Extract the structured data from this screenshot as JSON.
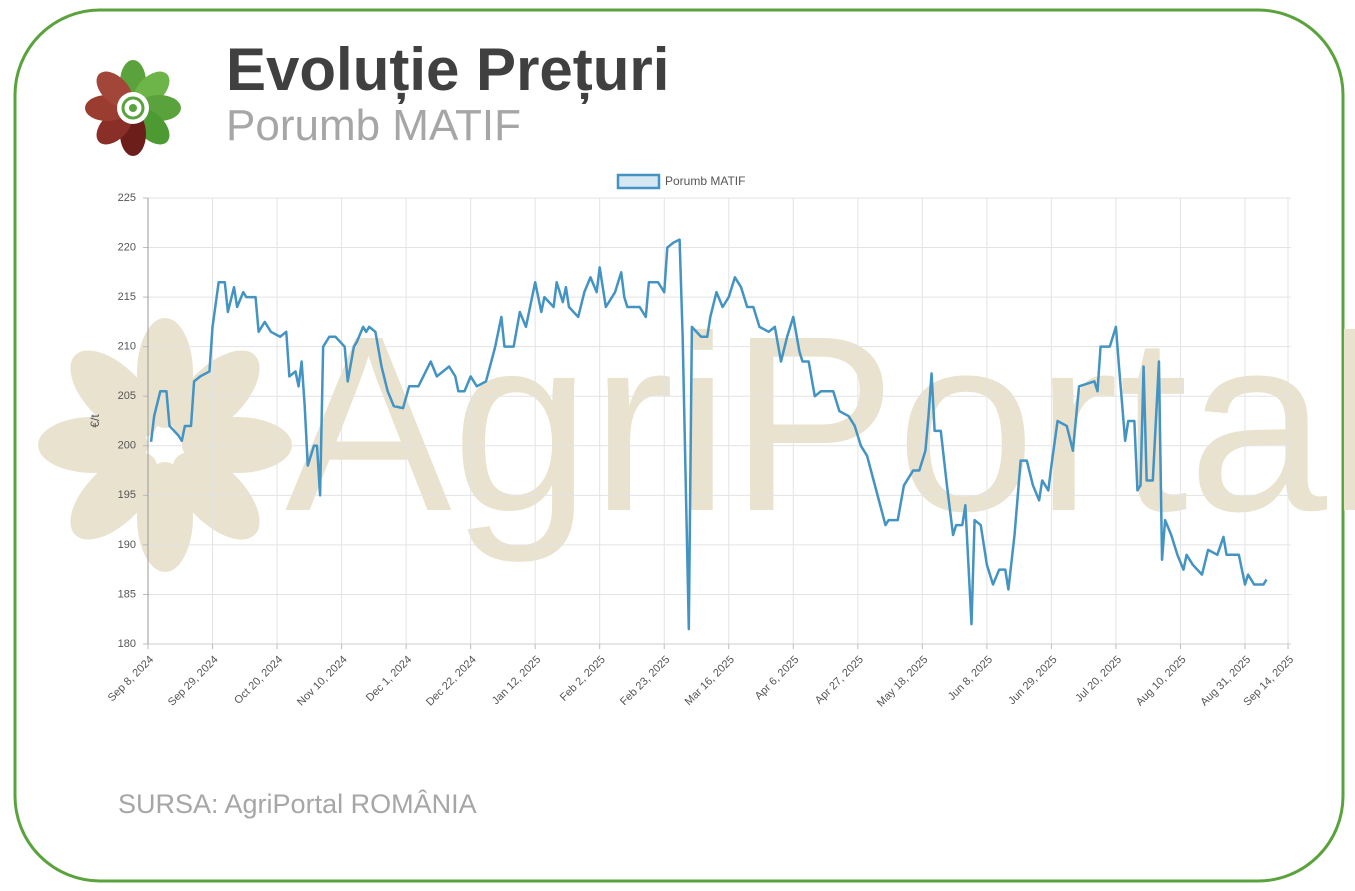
{
  "header": {
    "title": "Evoluție Prețuri",
    "subtitle": "Porumb MATIF"
  },
  "watermark": "AgriPortal",
  "source": "SURSA: AgriPortal ROMÂNIA",
  "chart_data": {
    "type": "line",
    "ylabel": "€/t",
    "grid": true,
    "x": [
      "2024-09-09",
      "2024-09-10",
      "2024-09-12",
      "2024-09-14",
      "2024-09-15",
      "2024-09-18",
      "2024-09-19",
      "2024-09-20",
      "2024-09-22",
      "2024-09-23",
      "2024-09-25",
      "2024-09-28",
      "2024-09-29",
      "2024-10-01",
      "2024-10-03",
      "2024-10-04",
      "2024-10-06",
      "2024-10-07",
      "2024-10-09",
      "2024-10-10",
      "2024-10-13",
      "2024-10-14",
      "2024-10-16",
      "2024-10-18",
      "2024-10-21",
      "2024-10-23",
      "2024-10-24",
      "2024-10-26",
      "2024-10-27",
      "2024-10-28",
      "2024-10-29",
      "2024-10-30",
      "2024-11-01",
      "2024-11-02",
      "2024-11-03",
      "2024-11-04",
      "2024-11-06",
      "2024-11-08",
      "2024-11-11",
      "2024-11-12",
      "2024-11-14",
      "2024-11-15",
      "2024-11-17",
      "2024-11-18",
      "2024-11-19",
      "2024-11-21",
      "2024-11-23",
      "2024-11-25",
      "2024-11-27",
      "2024-11-30",
      "2024-12-02",
      "2024-12-05",
      "2024-12-09",
      "2024-12-11",
      "2024-12-15",
      "2024-12-17",
      "2024-12-18",
      "2024-12-20",
      "2024-12-22",
      "2024-12-24",
      "2024-12-27",
      "2024-12-30",
      "2025-01-01",
      "2025-01-02",
      "2025-01-05",
      "2025-01-07",
      "2025-01-09",
      "2025-01-12",
      "2025-01-14",
      "2025-01-15",
      "2025-01-18",
      "2025-01-19",
      "2025-01-21",
      "2025-01-22",
      "2025-01-23",
      "2025-01-26",
      "2025-01-28",
      "2025-01-30",
      "2025-02-01",
      "2025-02-02",
      "2025-02-04",
      "2025-02-07",
      "2025-02-09",
      "2025-02-10",
      "2025-02-11",
      "2025-02-15",
      "2025-02-17",
      "2025-02-18",
      "2025-02-21",
      "2025-02-23",
      "2025-02-24",
      "2025-02-26",
      "2025-02-28",
      "2025-03-01",
      "2025-03-03",
      "2025-03-04",
      "2025-03-07",
      "2025-03-09",
      "2025-03-10",
      "2025-03-12",
      "2025-03-14",
      "2025-03-16",
      "2025-03-18",
      "2025-03-20",
      "2025-03-22",
      "2025-03-24",
      "2025-03-26",
      "2025-03-29",
      "2025-03-31",
      "2025-04-02",
      "2025-04-04",
      "2025-04-06",
      "2025-04-08",
      "2025-04-09",
      "2025-04-11",
      "2025-04-13",
      "2025-04-15",
      "2025-04-19",
      "2025-04-21",
      "2025-04-24",
      "2025-04-26",
      "2025-04-28",
      "2025-04-30",
      "2025-05-03",
      "2025-05-06",
      "2025-05-07",
      "2025-05-10",
      "2025-05-12",
      "2025-05-15",
      "2025-05-17",
      "2025-05-19",
      "2025-05-20",
      "2025-05-21",
      "2025-05-22",
      "2025-05-24",
      "2025-05-26",
      "2025-05-28",
      "2025-05-29",
      "2025-05-31",
      "2025-06-01",
      "2025-06-03",
      "2025-06-04",
      "2025-06-06",
      "2025-06-08",
      "2025-06-10",
      "2025-06-12",
      "2025-06-14",
      "2025-06-15",
      "2025-06-17",
      "2025-06-19",
      "2025-06-21",
      "2025-06-23",
      "2025-06-25",
      "2025-06-26",
      "2025-06-28",
      "2025-06-29",
      "2025-07-01",
      "2025-07-04",
      "2025-07-06",
      "2025-07-08",
      "2025-07-13",
      "2025-07-14",
      "2025-07-15",
      "2025-07-18",
      "2025-07-20",
      "2025-07-21",
      "2025-07-23",
      "2025-07-24",
      "2025-07-26",
      "2025-07-27",
      "2025-07-28",
      "2025-07-29",
      "2025-07-30",
      "2025-08-01",
      "2025-08-03",
      "2025-08-04",
      "2025-08-05",
      "2025-08-07",
      "2025-08-09",
      "2025-08-11",
      "2025-08-12",
      "2025-08-14",
      "2025-08-17",
      "2025-08-19",
      "2025-08-22",
      "2025-08-24",
      "2025-08-25",
      "2025-08-29",
      "2025-08-31",
      "2025-09-01",
      "2025-09-03",
      "2025-09-06",
      "2025-09-07"
    ],
    "series": [
      {
        "name": "Porumb MATIF",
        "color": "#4393c3",
        "values": [
          200.4,
          203,
          205.5,
          205.5,
          202,
          201,
          200.5,
          202,
          202,
          206.5,
          207,
          207.5,
          212,
          216.5,
          216.5,
          213.5,
          216,
          214,
          215.5,
          215,
          215,
          211.5,
          212.5,
          211.5,
          211,
          211.5,
          207,
          207.5,
          206,
          208.5,
          204,
          198,
          200,
          200,
          195,
          210,
          211,
          211,
          210,
          206.5,
          210,
          210.5,
          212,
          211.5,
          212,
          211.5,
          208,
          205.5,
          204,
          203.8,
          206,
          206,
          208.5,
          207,
          208,
          207,
          205.5,
          205.5,
          207,
          206,
          206.5,
          210,
          213,
          210,
          210,
          213.5,
          212,
          216.5,
          213.5,
          215,
          214,
          216.5,
          214.5,
          216,
          214,
          213,
          215.5,
          217,
          215.5,
          218,
          214,
          215.5,
          217.5,
          215,
          214,
          214,
          213,
          216.5,
          216.5,
          215.5,
          220,
          220.5,
          220.8,
          211,
          181.5,
          212,
          211,
          211,
          213,
          215.5,
          214,
          215,
          217,
          216,
          214,
          214,
          212,
          211.5,
          212,
          208.5,
          211,
          213,
          209.5,
          208.5,
          208.5,
          205,
          205.5,
          205.5,
          203.5,
          203,
          202,
          200,
          199,
          195.5,
          192,
          192.5,
          192.5,
          196,
          197.5,
          197.5,
          199.5,
          203,
          207.3,
          201.5,
          201.5,
          196,
          191,
          192,
          192,
          194,
          182,
          192.5,
          192,
          188,
          186,
          187.5,
          187.5,
          185.5,
          191,
          198.5,
          198.5,
          196,
          194.5,
          196.5,
          195.5,
          198,
          202.5,
          202,
          199.5,
          206,
          206.5,
          205.5,
          210,
          210,
          212,
          208,
          200.5,
          202.5,
          202.5,
          195.5,
          196,
          208,
          196.5,
          196.5,
          208.5,
          188.5,
          192.5,
          191,
          189,
          187.5,
          189,
          188,
          187,
          189.5,
          189,
          190.8,
          189,
          189,
          186,
          187,
          186,
          186,
          186.5
        ]
      }
    ],
    "xlim": [
      "2024-09-08",
      "2025-09-14"
    ],
    "xticks": [
      {
        "value": "2024-09-08",
        "label": "Sep 8, 2024"
      },
      {
        "value": "2024-09-29",
        "label": "Sep 29, 2024"
      },
      {
        "value": "2024-10-20",
        "label": "Oct 20, 2024"
      },
      {
        "value": "2024-11-10",
        "label": "Nov 10, 2024"
      },
      {
        "value": "2024-12-01",
        "label": "Dec 1, 2024"
      },
      {
        "value": "2024-12-22",
        "label": "Dec 22, 2024"
      },
      {
        "value": "2025-01-12",
        "label": "Jan 12, 2025"
      },
      {
        "value": "2025-02-02",
        "label": "Feb 2, 2025"
      },
      {
        "value": "2025-02-23",
        "label": "Feb 23, 2025"
      },
      {
        "value": "2025-03-16",
        "label": "Mar 16, 2025"
      },
      {
        "value": "2025-04-06",
        "label": "Apr 6, 2025"
      },
      {
        "value": "2025-04-27",
        "label": "Apr 27, 2025"
      },
      {
        "value": "2025-05-18",
        "label": "May 18, 2025"
      },
      {
        "value": "2025-06-08",
        "label": "Jun 8, 2025"
      },
      {
        "value": "2025-06-29",
        "label": "Jun 29, 2025"
      },
      {
        "value": "2025-07-20",
        "label": "Jul 20, 2025"
      },
      {
        "value": "2025-08-10",
        "label": "Aug 10, 2025"
      },
      {
        "value": "2025-08-31",
        "label": "Aug 31, 2025"
      },
      {
        "value": "2025-09-14",
        "label": "Sep 14, 2025"
      }
    ],
    "ylim": [
      180,
      225
    ],
    "yticks": [
      180,
      185,
      190,
      195,
      200,
      205,
      210,
      215,
      220,
      225
    ]
  }
}
